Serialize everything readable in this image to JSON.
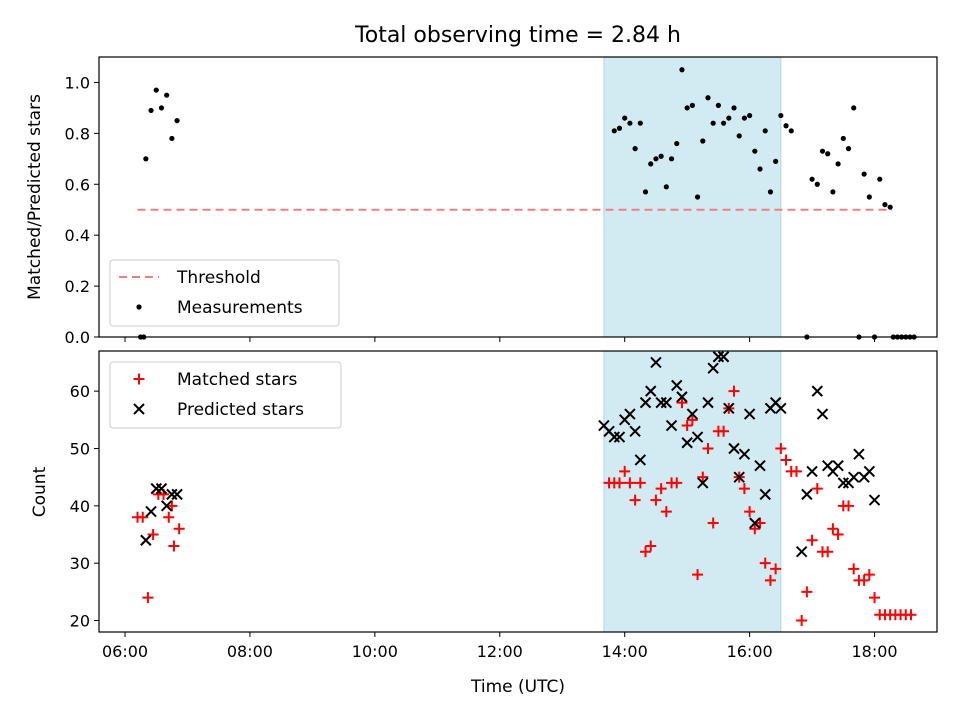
{
  "chart_data": [
    {
      "type": "scatter",
      "title": "Total observing time = 2.84 h",
      "ylabel": "Matched/Predicted stars",
      "xlabel": "",
      "xlim": [
        "05:35",
        "19:00"
      ],
      "ylim": [
        0,
        1.1
      ],
      "yticks": [
        "0.0",
        "0.2",
        "0.4",
        "0.6",
        "0.8",
        "1.0"
      ],
      "shaded_span": [
        "13:40",
        "16:30"
      ],
      "shaded_color": "#add8e6",
      "legend_position": "lower-left",
      "legend": [
        "Threshold",
        "Measurements"
      ],
      "threshold": {
        "name": "Threshold",
        "y": 0.5,
        "x_start": "06:12",
        "x_end": "18:17",
        "color": "#f08080"
      },
      "series": [
        {
          "name": "Measurements",
          "color": "#000000",
          "marker": "dot",
          "points": [
            [
              "06:15",
              0.0
            ],
            [
              "06:18",
              0.0
            ],
            [
              "06:20",
              0.7
            ],
            [
              "06:25",
              0.89
            ],
            [
              "06:30",
              0.97
            ],
            [
              "06:35",
              0.9
            ],
            [
              "06:40",
              0.95
            ],
            [
              "06:45",
              0.78
            ],
            [
              "06:50",
              0.85
            ],
            [
              "13:50",
              0.81
            ],
            [
              "13:55",
              0.82
            ],
            [
              "14:00",
              0.86
            ],
            [
              "14:05",
              0.84
            ],
            [
              "14:10",
              0.74
            ],
            [
              "14:15",
              0.84
            ],
            [
              "14:20",
              0.57
            ],
            [
              "14:25",
              0.68
            ],
            [
              "14:30",
              0.7
            ],
            [
              "14:35",
              0.71
            ],
            [
              "14:40",
              0.59
            ],
            [
              "14:45",
              0.7
            ],
            [
              "14:50",
              0.76
            ],
            [
              "14:55",
              1.05
            ],
            [
              "15:00",
              0.9
            ],
            [
              "15:05",
              0.91
            ],
            [
              "15:10",
              0.55
            ],
            [
              "15:15",
              0.77
            ],
            [
              "15:20",
              0.94
            ],
            [
              "15:25",
              0.84
            ],
            [
              "15:30",
              0.91
            ],
            [
              "15:35",
              0.84
            ],
            [
              "15:40",
              0.86
            ],
            [
              "15:45",
              0.9
            ],
            [
              "15:50",
              0.79
            ],
            [
              "15:55",
              0.86
            ],
            [
              "16:00",
              0.87
            ],
            [
              "16:05",
              0.73
            ],
            [
              "16:10",
              0.66
            ],
            [
              "16:15",
              0.81
            ],
            [
              "16:20",
              0.57
            ],
            [
              "16:25",
              0.69
            ],
            [
              "16:30",
              0.87
            ],
            [
              "16:35",
              0.83
            ],
            [
              "16:40",
              0.81
            ],
            [
              "16:55",
              0.0
            ],
            [
              "17:00",
              0.62
            ],
            [
              "17:05",
              0.6
            ],
            [
              "17:10",
              0.73
            ],
            [
              "17:15",
              0.72
            ],
            [
              "17:20",
              0.57
            ],
            [
              "17:25",
              0.68
            ],
            [
              "17:30",
              0.78
            ],
            [
              "17:35",
              0.74
            ],
            [
              "17:40",
              0.9
            ],
            [
              "17:45",
              0.0
            ],
            [
              "17:50",
              0.64
            ],
            [
              "17:55",
              0.55
            ],
            [
              "18:00",
              0.0
            ],
            [
              "18:05",
              0.62
            ],
            [
              "18:10",
              0.52
            ],
            [
              "18:15",
              0.51
            ],
            [
              "18:18",
              0.0
            ],
            [
              "18:22",
              0.0
            ],
            [
              "18:26",
              0.0
            ],
            [
              "18:30",
              0.0
            ],
            [
              "18:34",
              0.0
            ],
            [
              "18:38",
              0.0
            ]
          ]
        }
      ]
    },
    {
      "type": "scatter",
      "title": "",
      "ylabel": "Count",
      "xlabel": "Time (UTC)",
      "xlim": [
        "05:35",
        "19:00"
      ],
      "ylim": [
        18,
        67
      ],
      "yticks": [
        "20",
        "30",
        "40",
        "50",
        "60"
      ],
      "xticks": [
        "06:00",
        "08:00",
        "10:00",
        "12:00",
        "14:00",
        "16:00",
        "18:00"
      ],
      "shaded_span": [
        "13:40",
        "16:30"
      ],
      "shaded_color": "#add8e6",
      "legend_position": "top-left",
      "legend": [
        "Matched stars",
        "Predicted stars"
      ],
      "series": [
        {
          "name": "Matched stars",
          "color": "#ff0000",
          "marker": "plus",
          "points": [
            [
              "06:12",
              38
            ],
            [
              "06:17",
              38
            ],
            [
              "06:22",
              24
            ],
            [
              "06:27",
              35
            ],
            [
              "06:32",
              42
            ],
            [
              "06:37",
              42
            ],
            [
              "06:42",
              38
            ],
            [
              "06:47",
              33
            ],
            [
              "06:52",
              36
            ],
            [
              "06:45",
              40
            ],
            [
              "13:45",
              44
            ],
            [
              "13:50",
              44
            ],
            [
              "13:55",
              44
            ],
            [
              "14:00",
              46
            ],
            [
              "14:05",
              44
            ],
            [
              "14:10",
              41
            ],
            [
              "14:15",
              44
            ],
            [
              "14:20",
              32
            ],
            [
              "14:25",
              33
            ],
            [
              "14:30",
              41
            ],
            [
              "14:35",
              43
            ],
            [
              "14:40",
              39
            ],
            [
              "14:45",
              44
            ],
            [
              "14:50",
              44
            ],
            [
              "14:55",
              58
            ],
            [
              "15:00",
              54
            ],
            [
              "15:05",
              55
            ],
            [
              "15:10",
              28
            ],
            [
              "15:15",
              45
            ],
            [
              "15:20",
              50
            ],
            [
              "15:25",
              37
            ],
            [
              "15:30",
              53
            ],
            [
              "15:35",
              53
            ],
            [
              "15:40",
              57
            ],
            [
              "15:45",
              60
            ],
            [
              "15:50",
              45
            ],
            [
              "15:55",
              43
            ],
            [
              "16:00",
              39
            ],
            [
              "16:05",
              36
            ],
            [
              "16:10",
              37
            ],
            [
              "16:15",
              30
            ],
            [
              "16:20",
              27
            ],
            [
              "16:25",
              29
            ],
            [
              "16:30",
              50
            ],
            [
              "16:35",
              48
            ],
            [
              "16:40",
              46
            ],
            [
              "16:45",
              46
            ],
            [
              "16:50",
              20
            ],
            [
              "16:55",
              25
            ],
            [
              "17:00",
              34
            ],
            [
              "17:05",
              43
            ],
            [
              "17:10",
              32
            ],
            [
              "17:15",
              32
            ],
            [
              "17:20",
              36
            ],
            [
              "17:25",
              35
            ],
            [
              "17:30",
              40
            ],
            [
              "17:35",
              40
            ],
            [
              "17:40",
              29
            ],
            [
              "17:45",
              27
            ],
            [
              "17:50",
              27
            ],
            [
              "17:55",
              28
            ],
            [
              "18:00",
              24
            ],
            [
              "18:05",
              21
            ],
            [
              "18:10",
              21
            ],
            [
              "18:15",
              21
            ],
            [
              "18:20",
              21
            ],
            [
              "18:25",
              21
            ],
            [
              "18:30",
              21
            ],
            [
              "18:35",
              21
            ]
          ]
        },
        {
          "name": "Predicted stars",
          "color": "#000000",
          "marker": "x",
          "points": [
            [
              "06:20",
              34
            ],
            [
              "06:25",
              39
            ],
            [
              "06:30",
              43
            ],
            [
              "06:35",
              43
            ],
            [
              "06:40",
              40
            ],
            [
              "06:45",
              42
            ],
            [
              "06:50",
              42
            ],
            [
              "13:40",
              54
            ],
            [
              "13:45",
              53
            ],
            [
              "13:50",
              52
            ],
            [
              "13:55",
              52
            ],
            [
              "14:00",
              55
            ],
            [
              "14:05",
              56
            ],
            [
              "14:10",
              53
            ],
            [
              "14:15",
              48
            ],
            [
              "14:20",
              58
            ],
            [
              "14:25",
              60
            ],
            [
              "14:30",
              65
            ],
            [
              "14:35",
              58
            ],
            [
              "14:40",
              58
            ],
            [
              "14:45",
              54
            ],
            [
              "14:50",
              61
            ],
            [
              "14:55",
              59
            ],
            [
              "15:00",
              51
            ],
            [
              "15:05",
              56
            ],
            [
              "15:10",
              52
            ],
            [
              "15:15",
              44
            ],
            [
              "15:20",
              58
            ],
            [
              "15:25",
              64
            ],
            [
              "15:30",
              66
            ],
            [
              "15:35",
              66
            ],
            [
              "15:40",
              57
            ],
            [
              "15:45",
              50
            ],
            [
              "15:50",
              45
            ],
            [
              "15:55",
              49
            ],
            [
              "16:00",
              56
            ],
            [
              "16:05",
              37
            ],
            [
              "16:10",
              47
            ],
            [
              "16:15",
              42
            ],
            [
              "16:20",
              57
            ],
            [
              "16:25",
              58
            ],
            [
              "16:30",
              57
            ],
            [
              "16:50",
              32
            ],
            [
              "16:55",
              42
            ],
            [
              "17:00",
              46
            ],
            [
              "17:05",
              60
            ],
            [
              "17:10",
              56
            ],
            [
              "17:15",
              47
            ],
            [
              "17:20",
              46
            ],
            [
              "17:25",
              47
            ],
            [
              "17:30",
              44
            ],
            [
              "17:35",
              44
            ],
            [
              "17:40",
              45
            ],
            [
              "17:45",
              49
            ],
            [
              "17:50",
              45
            ],
            [
              "17:55",
              46
            ],
            [
              "18:00",
              41
            ]
          ]
        }
      ]
    }
  ]
}
